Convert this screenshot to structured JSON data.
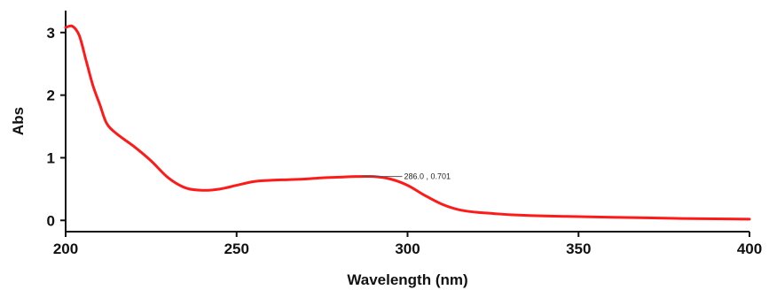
{
  "chart_data": {
    "type": "line",
    "title": "",
    "xlabel": "Wavelength (nm)",
    "ylabel": "Abs",
    "xlim": [
      200,
      400
    ],
    "ylim": [
      -0.18,
      3.35
    ],
    "xticks": [
      200,
      250,
      300,
      350,
      400
    ],
    "yticks": [
      0,
      1,
      2,
      3
    ],
    "grid": false,
    "series": [
      {
        "name": "",
        "color": "#ff1a1a",
        "x": [
          200,
          202,
          204,
          206,
          208,
          210,
          212,
          215,
          220,
          225,
          230,
          235,
          240,
          245,
          250,
          255,
          260,
          265,
          270,
          275,
          280,
          285,
          290,
          295,
          300,
          305,
          310,
          315,
          320,
          325,
          330,
          340,
          350,
          360,
          370,
          380,
          390,
          400
        ],
        "y": [
          3.08,
          3.1,
          2.95,
          2.55,
          2.15,
          1.85,
          1.55,
          1.38,
          1.18,
          0.95,
          0.68,
          0.52,
          0.48,
          0.5,
          0.56,
          0.62,
          0.64,
          0.65,
          0.66,
          0.68,
          0.69,
          0.7,
          0.7,
          0.66,
          0.56,
          0.4,
          0.26,
          0.17,
          0.13,
          0.11,
          0.09,
          0.07,
          0.06,
          0.05,
          0.04,
          0.03,
          0.025,
          0.02
        ]
      }
    ],
    "annotation": {
      "text": "286.0 , 0.701",
      "x": 286.0,
      "y": 0.701
    }
  }
}
